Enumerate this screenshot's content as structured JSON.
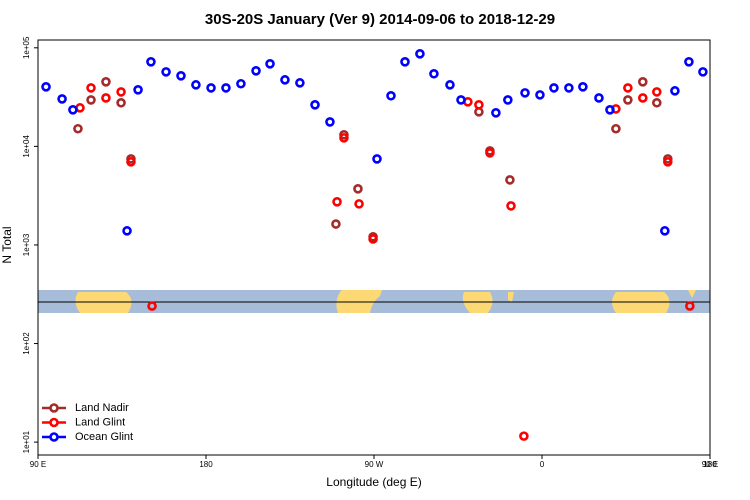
{
  "chart_data": {
    "type": "scatter",
    "title": "30S-20S January (Ver 9)   2014-09-06 to 2018-12-29",
    "x_label": "Longitude (deg E)",
    "y_label": "N Total",
    "log_y": true,
    "legend": "bottom-left",
    "xlim": [
      90,
      450
    ],
    "ylim": [
      7.4,
      120000
    ],
    "xticks": [
      {
        "value": 90,
        "label": "90 E"
      },
      {
        "value": 180,
        "label": "180"
      },
      {
        "value": 270,
        "label": "90 W"
      },
      {
        "value": 360,
        "label": "0"
      },
      {
        "value": 450,
        "label": "90 E"
      },
      {
        "value": 540,
        "label": "180"
      }
    ],
    "yticks": [
      {
        "value": 10,
        "label": "1e+01"
      },
      {
        "value": 100,
        "label": "1e+02"
      },
      {
        "value": 1000,
        "label": "1e+03"
      },
      {
        "value": 10000,
        "label": "1e+04"
      },
      {
        "value": 100000,
        "label": "1e+05"
      }
    ],
    "series": [
      {
        "name": "Land Nadir",
        "color": "#a52a2a",
        "x": [
          111.4,
          118.4,
          126.4,
          134.5,
          139.8,
          249.6,
          253.9,
          261.4,
          269.5,
          326.2,
          332.1,
          342.8,
          399.6,
          406,
          414,
          421.5,
          427.4
        ],
        "values": [
          15100,
          29600,
          45200,
          27700,
          7460,
          1630,
          13100,
          3710,
          1210,
          22400,
          9000,
          4570,
          15100,
          29600,
          45200,
          27700,
          7460
        ]
      },
      {
        "name": "Land Glint",
        "color": "#ff0000",
        "x": [
          112.5,
          118.4,
          126.4,
          134.5,
          139.8,
          151.1,
          250.2,
          253.9,
          262,
          269.5,
          320.3,
          326.2,
          332.1,
          343.4,
          350.3,
          399.6,
          406,
          414,
          421.5,
          427.4,
          439.2
        ],
        "values": [
          24600,
          39200,
          31000,
          35700,
          6970,
          240,
          2740,
          12200,
          2610,
          1150,
          28300,
          26400,
          8590,
          2490,
          11.5,
          24000,
          39200,
          31000,
          35700,
          6970,
          240
        ]
      },
      {
        "name": "Ocean Glint",
        "color": "#0000ff",
        "x": [
          94.3,
          102.9,
          108.7,
          137.7,
          143.6,
          150.5,
          158.6,
          166.6,
          174.6,
          182.7,
          190.7,
          198.7,
          206.8,
          214.3,
          222.3,
          230.3,
          238.4,
          246.4,
          271.6,
          279.1,
          286.6,
          294.6,
          302.1,
          310.7,
          316.6,
          335.3,
          341.7,
          350.9,
          358.9,
          366.4,
          374.4,
          381.9,
          390.5,
          396.4,
          425.8,
          431.2,
          438.7,
          446.2
        ],
        "values": [
          40200,
          30300,
          23500,
          1390,
          37500,
          72100,
          57000,
          52000,
          42100,
          39200,
          39200,
          43200,
          58400,
          68800,
          47300,
          44100,
          26400,
          17700,
          7460,
          32600,
          72100,
          86900,
          54500,
          42100,
          29600,
          21900,
          29600,
          34900,
          33300,
          39200,
          39200,
          40200,
          31000,
          23500,
          1390,
          36600,
          72100,
          57000
        ]
      }
    ]
  }
}
